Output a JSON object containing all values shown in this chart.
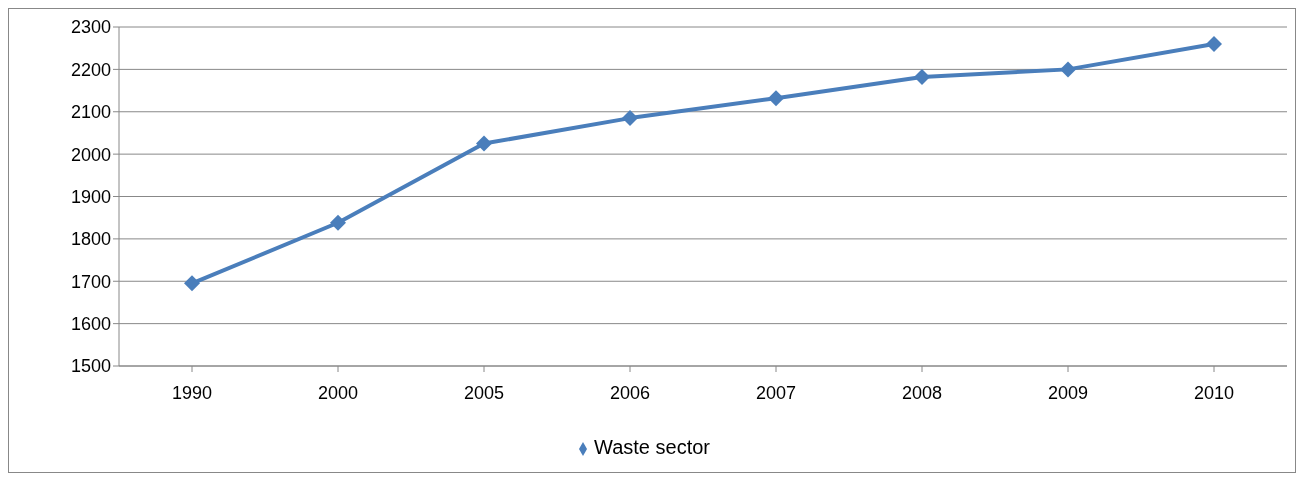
{
  "chart_data": {
    "type": "line",
    "categories": [
      "1990",
      "2000",
      "2005",
      "2006",
      "2007",
      "2008",
      "2009",
      "2010"
    ],
    "series": [
      {
        "name": "Waste sector",
        "color": "#4a7ebb",
        "values": [
          1695,
          1838,
          2025,
          2085,
          2132,
          2182,
          2200,
          2260
        ]
      }
    ],
    "ylim": [
      1500,
      2300
    ],
    "yticks": [
      1500,
      1600,
      1700,
      1800,
      1900,
      2000,
      2100,
      2200,
      2300
    ],
    "grid": "y",
    "legend": "bottom",
    "marker": "diamond",
    "line_style": "solid"
  }
}
